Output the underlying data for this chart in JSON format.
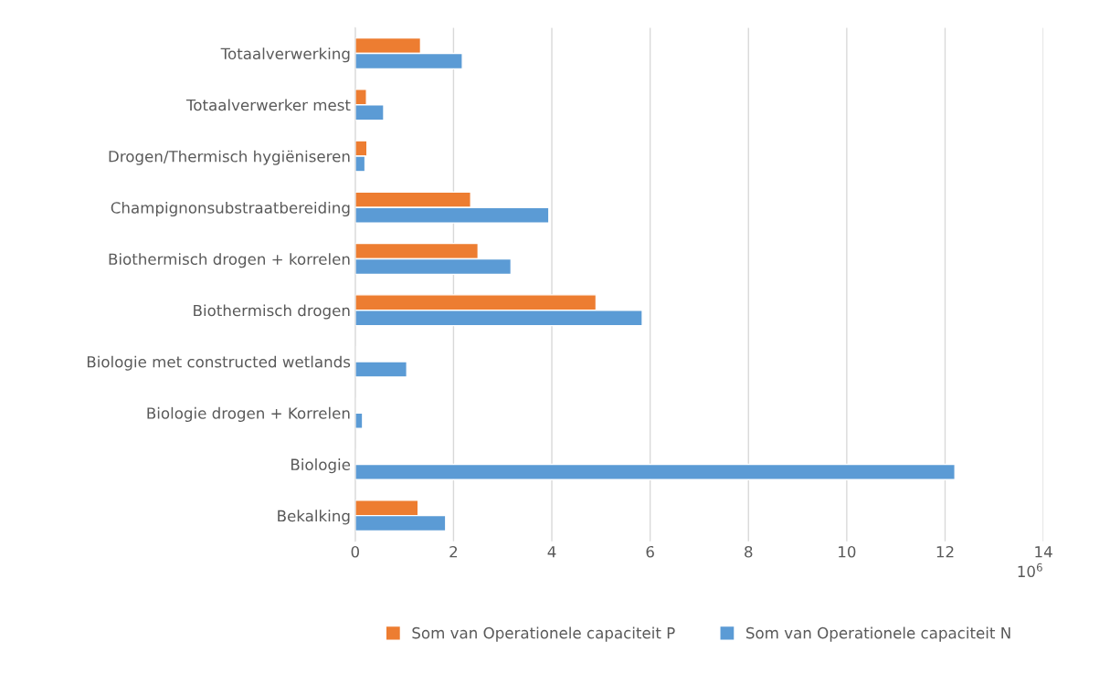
{
  "chart_data": {
    "type": "bar",
    "orientation": "horizontal",
    "categories": [
      "Totaalverwerking",
      "Totaalverwerker mest",
      "Drogen/Thermisch hygiëniseren",
      "Champignonsubstraatbereiding",
      "Biothermisch drogen + korrelen",
      "Biothermisch drogen",
      "Biologie met constructed wetlands",
      "Biologie drogen + Korrelen",
      "Biologie",
      "Bekalking"
    ],
    "series": [
      {
        "name": "Som van Operationele capaciteit P",
        "color": "#ed7d31",
        "values": [
          1.33,
          0.23,
          0.24,
          2.35,
          2.5,
          4.9,
          null,
          null,
          null,
          1.28
        ]
      },
      {
        "name": "Som van Operationele capaciteit N",
        "color": "#5b9bd5",
        "values": [
          2.18,
          0.58,
          0.2,
          3.94,
          3.17,
          5.84,
          1.05,
          0.15,
          12.2,
          1.84
        ]
      }
    ],
    "xlabel": "10$^{6}$",
    "xlim": [
      0,
      14
    ],
    "xticks": [
      0,
      2,
      4,
      6,
      8,
      10,
      12,
      14
    ],
    "grid": "x",
    "legend": "bottom"
  }
}
